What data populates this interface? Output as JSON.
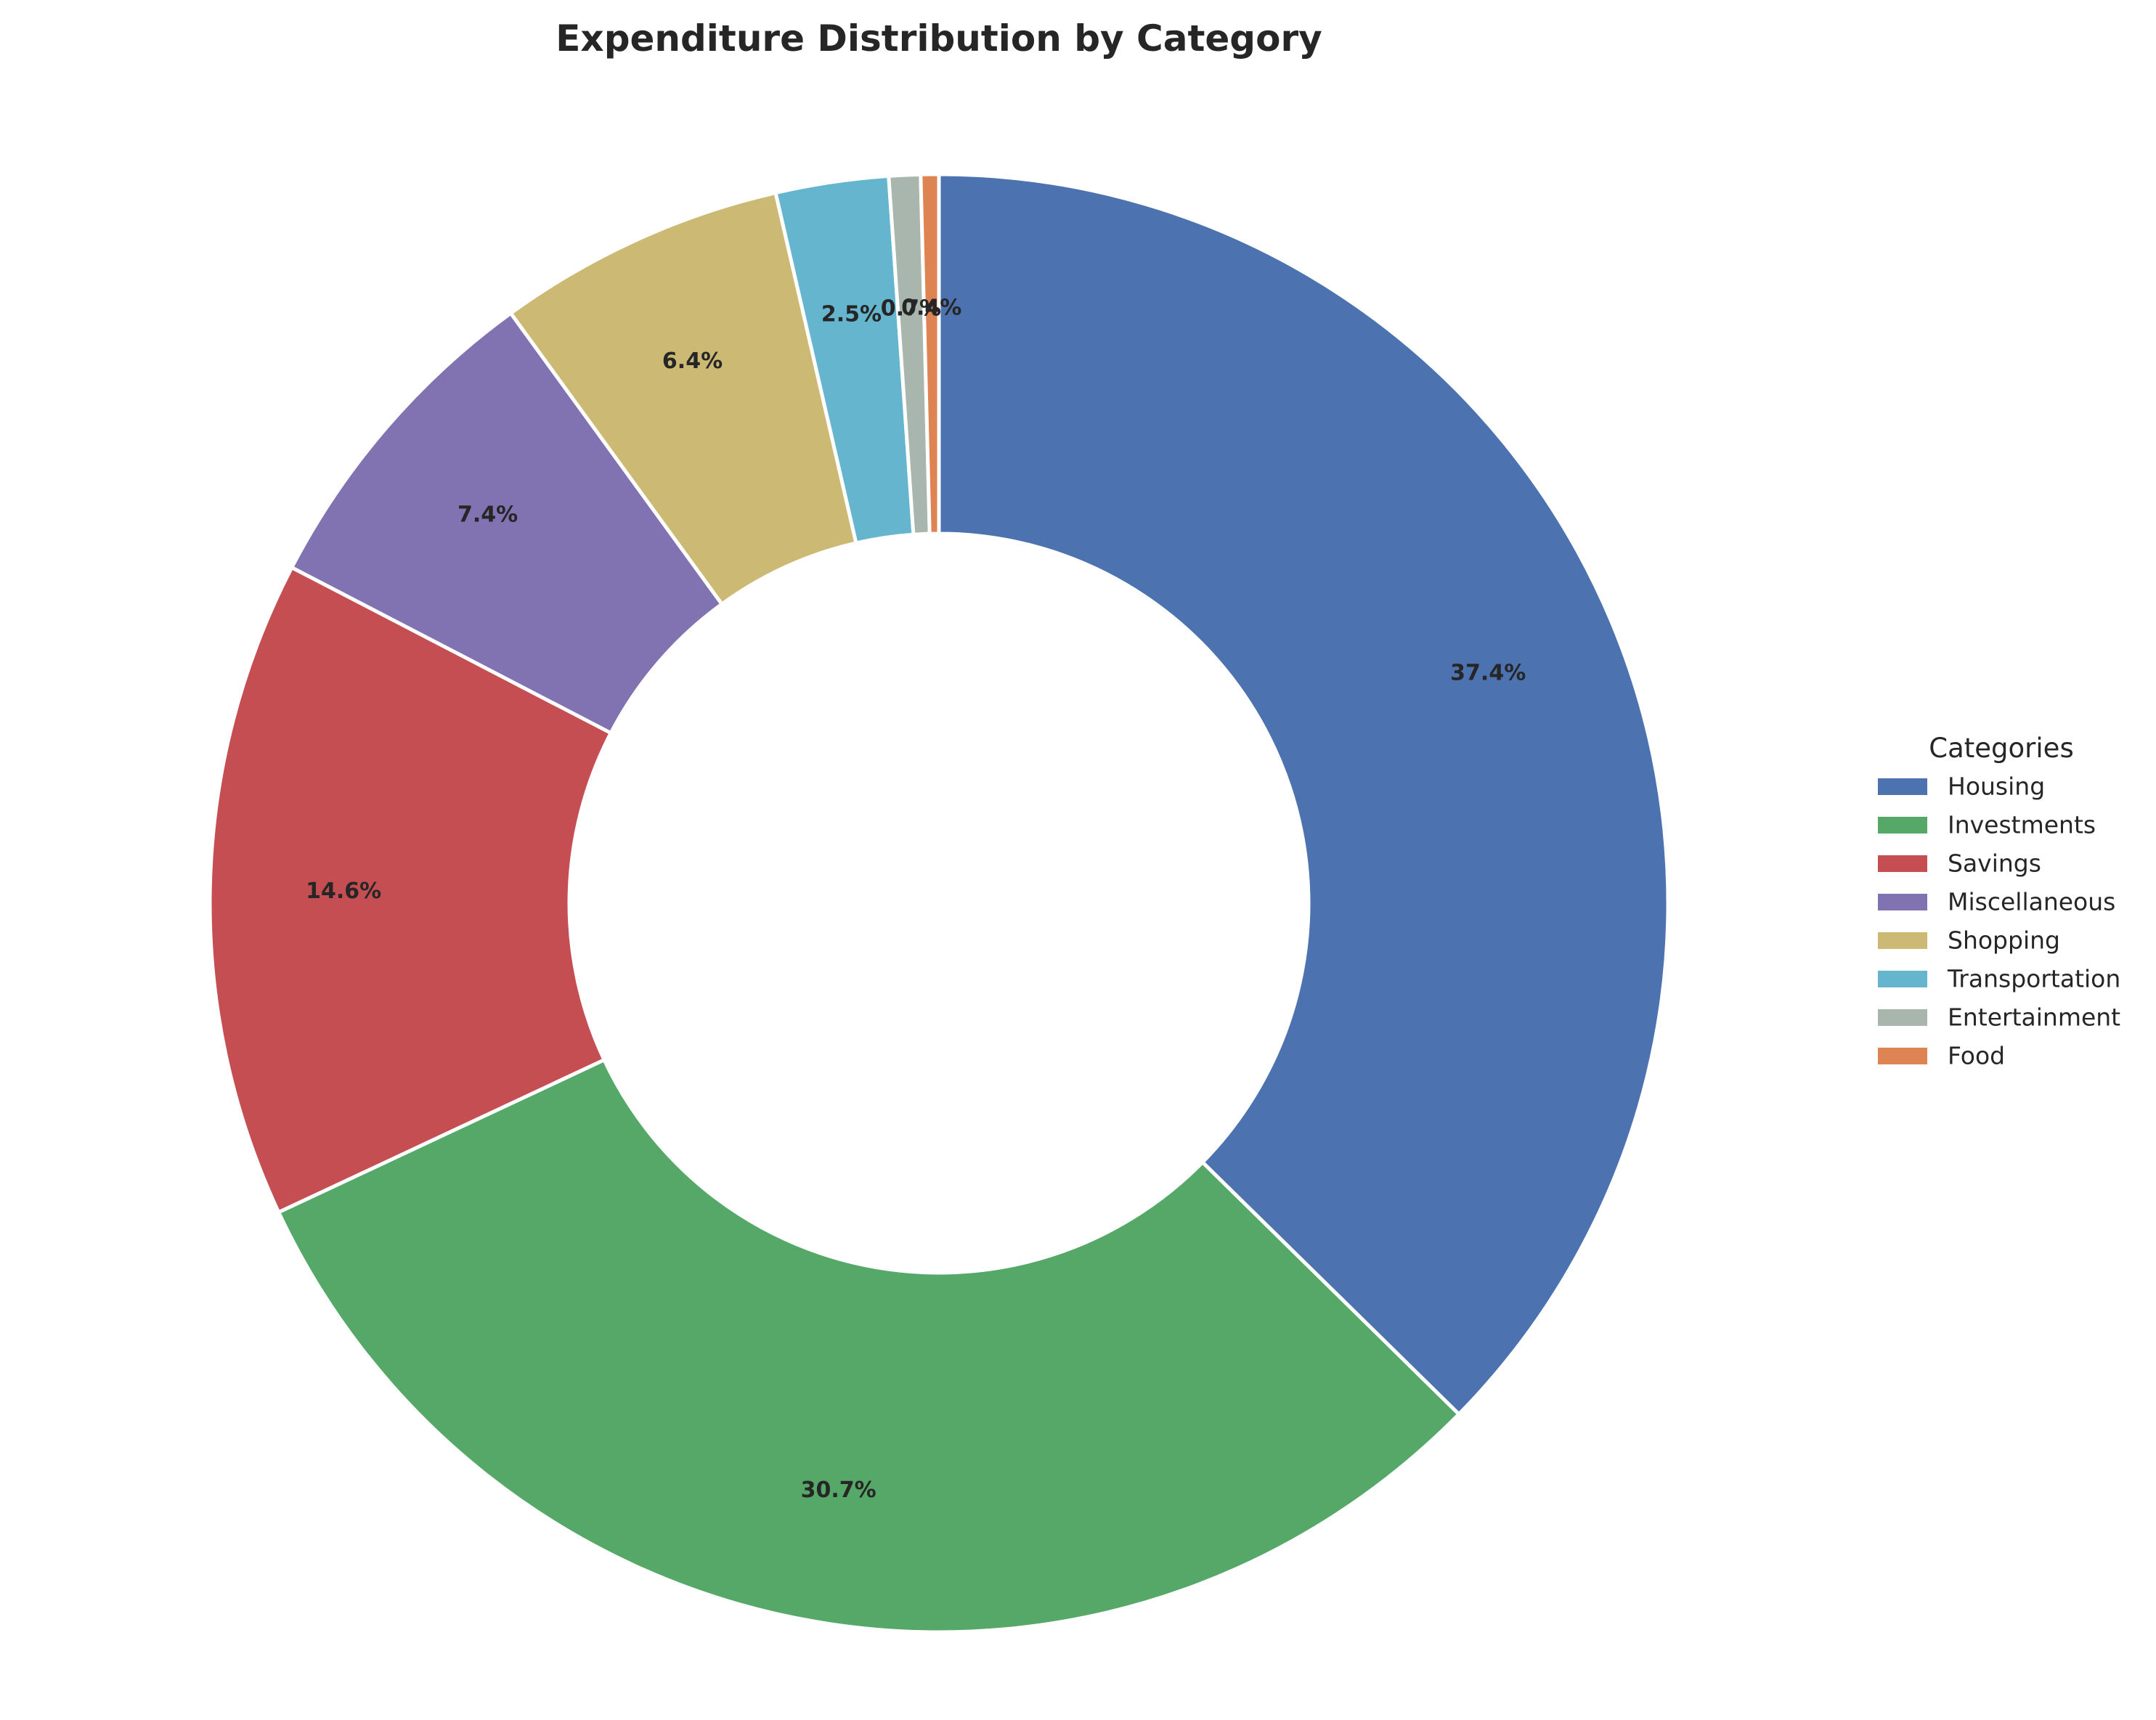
{
  "chart_data": {
    "type": "pie",
    "donut": true,
    "title": "Expenditure Distribution by Category",
    "legend": {
      "title": "Categories",
      "placement": "center-right"
    },
    "start_angle_deg": 90,
    "direction": "clockwise",
    "slices": [
      {
        "label": "Housing",
        "percent": 37.4,
        "pct_label": "37.4%",
        "color": "#4c72b0"
      },
      {
        "label": "Investments",
        "percent": 30.7,
        "pct_label": "30.7%",
        "color": "#55a868"
      },
      {
        "label": "Savings",
        "percent": 14.6,
        "pct_label": "14.6%",
        "color": "#c44e52"
      },
      {
        "label": "Miscellaneous",
        "percent": 7.4,
        "pct_label": "7.4%",
        "color": "#8172b2"
      },
      {
        "label": "Shopping",
        "percent": 6.4,
        "pct_label": "6.4%",
        "color": "#ccb974"
      },
      {
        "label": "Transportation",
        "percent": 2.5,
        "pct_label": "2.5%",
        "color": "#64b5cd"
      },
      {
        "label": "Entertainment",
        "percent": 0.7,
        "pct_label": "0.7%",
        "color": "#a9b6ae"
      },
      {
        "label": "Food",
        "percent": 0.4,
        "pct_label": "0.4%",
        "color": "#dd8452"
      }
    ]
  }
}
